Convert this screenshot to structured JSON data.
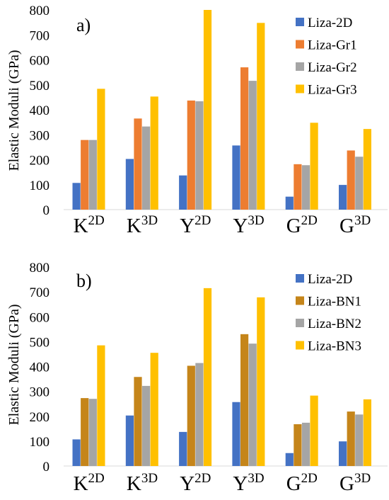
{
  "chart_data": [
    {
      "type": "bar",
      "panel_label": "a)",
      "ylabel": "Elastic Moduli (GPa)",
      "ylim": [
        0,
        800
      ],
      "yticks": [
        0,
        100,
        200,
        300,
        400,
        500,
        600,
        700,
        800
      ],
      "legend_position": "top-right",
      "categories": [
        {
          "base": "K",
          "sup": "2D"
        },
        {
          "base": "K",
          "sup": "3D"
        },
        {
          "base": "Y",
          "sup": "2D"
        },
        {
          "base": "Y",
          "sup": "3D"
        },
        {
          "base": "G",
          "sup": "2D"
        },
        {
          "base": "G",
          "sup": "3D"
        }
      ],
      "series": [
        {
          "name": "Liza-2D",
          "color": "#4472C4",
          "values": [
            107,
            203,
            137,
            257,
            52,
            99
          ]
        },
        {
          "name": "Liza-Gr1",
          "color": "#ED7D31",
          "values": [
            279,
            365,
            437,
            570,
            182,
            237
          ]
        },
        {
          "name": "Liza-Gr2",
          "color": "#A5A5A5",
          "values": [
            279,
            333,
            434,
            516,
            178,
            212
          ]
        },
        {
          "name": "Liza-Gr3",
          "color": "#FFC000",
          "values": [
            484,
            453,
            800,
            748,
            348,
            323
          ]
        }
      ]
    },
    {
      "type": "bar",
      "panel_label": "b)",
      "ylabel": "Elastic Moduli (GPa)",
      "ylim": [
        0,
        800
      ],
      "yticks": [
        0,
        100,
        200,
        300,
        400,
        500,
        600,
        700,
        800
      ],
      "legend_position": "top-right",
      "categories": [
        {
          "base": "K",
          "sup": "2D"
        },
        {
          "base": "K",
          "sup": "3D"
        },
        {
          "base": "Y",
          "sup": "2D"
        },
        {
          "base": "Y",
          "sup": "3D"
        },
        {
          "base": "G",
          "sup": "2D"
        },
        {
          "base": "G",
          "sup": "3D"
        }
      ],
      "series": [
        {
          "name": "Liza-2D",
          "color": "#4472C4",
          "values": [
            107,
            203,
            137,
            257,
            52,
            99
          ]
        },
        {
          "name": "Liza-BN1",
          "color": "#C5851A",
          "values": [
            273,
            358,
            403,
            530,
            168,
            219
          ]
        },
        {
          "name": "Liza-BN2",
          "color": "#A5A5A5",
          "values": [
            270,
            322,
            414,
            492,
            174,
            207
          ]
        },
        {
          "name": "Liza-BN3",
          "color": "#FFC000",
          "values": [
            485,
            455,
            715,
            678,
            283,
            268
          ]
        }
      ]
    }
  ]
}
